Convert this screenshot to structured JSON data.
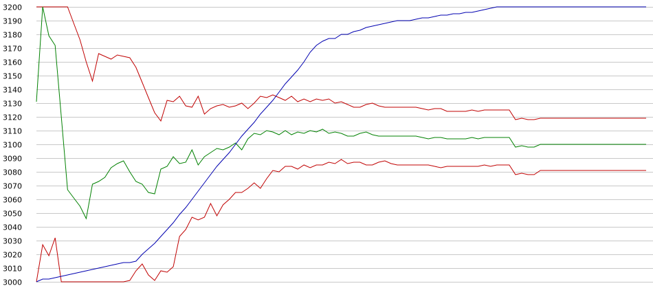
{
  "chart_data": {
    "type": "line",
    "title": "",
    "xlabel": "",
    "ylabel": "",
    "ylim": [
      3000,
      3200
    ],
    "ytick_values": [
      3000,
      3010,
      3020,
      3030,
      3040,
      3050,
      3060,
      3070,
      3080,
      3090,
      3100,
      3110,
      3120,
      3130,
      3140,
      3150,
      3160,
      3170,
      3180,
      3190,
      3200
    ],
    "ytick_labels": [
      "3000",
      "3010",
      "3020",
      "3030",
      "3040",
      "3050",
      "3060",
      "3070",
      "3080",
      "3090",
      "3100",
      "3110",
      "3120",
      "3130",
      "3140",
      "3150",
      "3160",
      "3170",
      "3180",
      "3190",
      "3200"
    ],
    "grid": "horizontal",
    "legend": "none",
    "x": [
      0,
      1,
      2,
      3,
      4,
      5,
      6,
      7,
      8,
      9,
      10,
      11,
      12,
      13,
      14,
      15,
      16,
      17,
      18,
      19,
      20,
      21,
      22,
      23,
      24,
      25,
      26,
      27,
      28,
      29,
      30,
      31,
      32,
      33,
      34,
      35,
      36,
      37,
      38,
      39,
      40,
      41,
      42,
      43,
      44,
      45,
      46,
      47,
      48,
      49,
      50,
      51,
      52,
      53,
      54,
      55,
      56,
      57,
      58,
      59,
      60,
      61,
      62,
      63,
      64,
      65,
      66,
      67,
      68,
      69,
      70,
      71,
      72,
      73,
      74,
      75,
      76,
      77,
      78,
      79,
      80,
      81,
      82,
      83,
      84,
      85,
      86,
      87,
      88,
      89,
      90,
      91,
      92,
      93,
      94,
      95,
      96,
      97,
      98
    ],
    "series": [
      {
        "color": "#c00000",
        "values": [
          3200,
          3200,
          3200,
          3200,
          3200,
          3200,
          3188,
          3176,
          3160,
          3146,
          3166,
          3164,
          3162,
          3165,
          3164,
          3163,
          3156,
          3145,
          3134,
          3123,
          3117,
          3132,
          3131,
          3135,
          3128,
          3127,
          3135,
          3122,
          3126,
          3128,
          3129,
          3127,
          3128,
          3130,
          3126,
          3130,
          3135,
          3134,
          3136,
          3134,
          3132,
          3135,
          3131,
          3133,
          3131,
          3133,
          3132,
          3133,
          3130,
          3131,
          3129,
          3127,
          3127,
          3129,
          3130,
          3128,
          3127,
          3127,
          3127,
          3127,
          3127,
          3127,
          3126,
          3125,
          3126,
          3126,
          3124,
          3124,
          3124,
          3124,
          3125,
          3124,
          3125,
          3125,
          3125,
          3125,
          3125,
          3118,
          3119,
          3118,
          3118,
          3119,
          3119,
          3119,
          3119,
          3119,
          3119,
          3119,
          3119,
          3119,
          3119,
          3119,
          3119,
          3119,
          3119,
          3119,
          3119,
          3119,
          3119
        ]
      },
      {
        "color": "#008000",
        "values": [
          3131,
          3200,
          3179,
          3172,
          3120,
          3067,
          3061,
          3055,
          3046,
          3071,
          3073,
          3076,
          3083,
          3086,
          3088,
          3080,
          3073,
          3071,
          3065,
          3064,
          3082,
          3084,
          3091,
          3086,
          3087,
          3096,
          3085,
          3091,
          3094,
          3097,
          3096,
          3098,
          3101,
          3096,
          3104,
          3108,
          3107,
          3110,
          3109,
          3107,
          3110,
          3107,
          3109,
          3108,
          3110,
          3109,
          3111,
          3108,
          3109,
          3108,
          3106,
          3106,
          3108,
          3109,
          3107,
          3106,
          3106,
          3106,
          3106,
          3106,
          3106,
          3106,
          3105,
          3104,
          3105,
          3105,
          3104,
          3104,
          3104,
          3104,
          3105,
          3104,
          3105,
          3105,
          3105,
          3105,
          3105,
          3098,
          3099,
          3098,
          3098,
          3100,
          3100,
          3100,
          3100,
          3100,
          3100,
          3100,
          3100,
          3100,
          3100,
          3100,
          3100,
          3100,
          3100,
          3100,
          3100,
          3100,
          3100
        ]
      },
      {
        "color": "#c00000",
        "values": [
          3000,
          3027,
          3019,
          3032,
          3000,
          3000,
          3000,
          3000,
          3000,
          3000,
          3000,
          3000,
          3000,
          3000,
          3000,
          3001,
          3008,
          3013,
          3005,
          3001,
          3008,
          3007,
          3011,
          3033,
          3038,
          3047,
          3045,
          3047,
          3057,
          3048,
          3056,
          3060,
          3065,
          3065,
          3068,
          3072,
          3068,
          3075,
          3081,
          3080,
          3084,
          3084,
          3082,
          3085,
          3083,
          3085,
          3085,
          3087,
          3086,
          3089,
          3086,
          3087,
          3087,
          3085,
          3085,
          3087,
          3088,
          3086,
          3085,
          3085,
          3085,
          3085,
          3085,
          3085,
          3084,
          3083,
          3084,
          3084,
          3084,
          3084,
          3084,
          3084,
          3085,
          3084,
          3085,
          3085,
          3085,
          3078,
          3079,
          3078,
          3078,
          3081,
          3081,
          3081,
          3081,
          3081,
          3081,
          3081,
          3081,
          3081,
          3081,
          3081,
          3081,
          3081,
          3081,
          3081,
          3081,
          3081,
          3081
        ]
      },
      {
        "color": "#0000b0",
        "values": [
          3000,
          3002,
          3002,
          3003,
          3004,
          3005,
          3006,
          3007,
          3008,
          3009,
          3010,
          3011,
          3012,
          3013,
          3014,
          3014,
          3015,
          3020,
          3024,
          3028,
          3033,
          3038,
          3043,
          3049,
          3054,
          3060,
          3066,
          3072,
          3078,
          3084,
          3089,
          3094,
          3100,
          3106,
          3111,
          3116,
          3122,
          3127,
          3132,
          3138,
          3144,
          3149,
          3154,
          3160,
          3167,
          3172,
          3175,
          3177,
          3177,
          3180,
          3180,
          3182,
          3183,
          3185,
          3186,
          3187,
          3188,
          3189,
          3190,
          3190,
          3190,
          3191,
          3192,
          3192,
          3193,
          3194,
          3194,
          3195,
          3195,
          3196,
          3196,
          3197,
          3198,
          3199,
          3200,
          3200,
          3200,
          3200,
          3200,
          3200,
          3200,
          3200,
          3200,
          3200,
          3200,
          3200,
          3200,
          3200,
          3200,
          3200,
          3200,
          3200,
          3200,
          3200,
          3200,
          3200,
          3200,
          3200,
          3200
        ]
      }
    ]
  }
}
